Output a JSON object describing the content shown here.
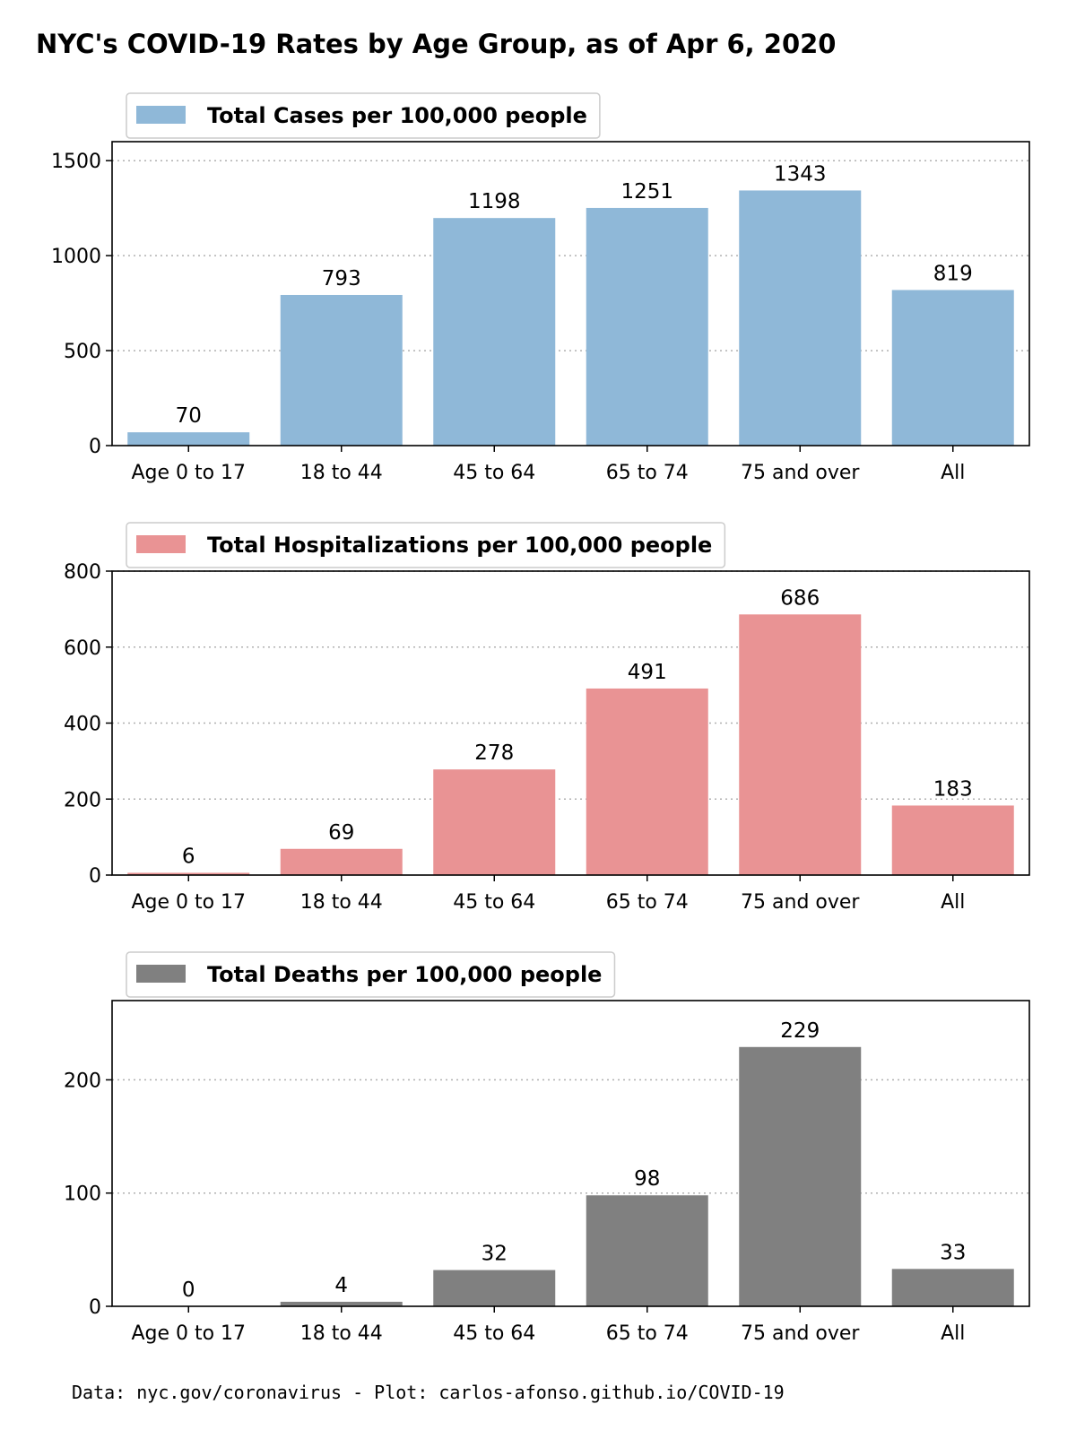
{
  "title": "NYC's COVID-19 Rates by Age Group, as of Apr 6, 2020",
  "footer": "Data: nyc.gov/coronavirus - Plot: carlos-afonso.github.io/COVID-19",
  "chart_data": [
    {
      "type": "bar",
      "id": "cases",
      "legend": "Total Cases per 100,000 people",
      "color": "#8fb8d8",
      "categories": [
        "Age 0 to 17",
        "18 to 44",
        "45 to 64",
        "65 to 74",
        "75 and over",
        "All"
      ],
      "values": [
        70,
        793,
        1198,
        1251,
        1343,
        819
      ],
      "ylim": [
        0,
        1600
      ],
      "yticks": [
        0,
        500,
        1000,
        1500
      ],
      "grid": true,
      "legend_position": "top-left"
    },
    {
      "type": "bar",
      "id": "hospitalizations",
      "legend": "Total Hospitalizations per 100,000 people",
      "color": "#e99394",
      "categories": [
        "Age 0 to 17",
        "18 to 44",
        "45 to 64",
        "65 to 74",
        "75 and over",
        "All"
      ],
      "values": [
        6,
        69,
        278,
        491,
        686,
        183
      ],
      "ylim": [
        0,
        800
      ],
      "yticks": [
        0,
        200,
        400,
        600,
        800
      ],
      "grid": true,
      "legend_position": "top-left"
    },
    {
      "type": "bar",
      "id": "deaths",
      "legend": "Total Deaths per 100,000 people",
      "color": "#808080",
      "categories": [
        "Age 0 to 17",
        "18 to 44",
        "45 to 64",
        "65 to 74",
        "75 and over",
        "All"
      ],
      "values": [
        0,
        4,
        32,
        98,
        229,
        33
      ],
      "ylim": [
        0,
        270
      ],
      "yticks": [
        0,
        100,
        200
      ],
      "grid": true,
      "legend_position": "top-left"
    }
  ]
}
